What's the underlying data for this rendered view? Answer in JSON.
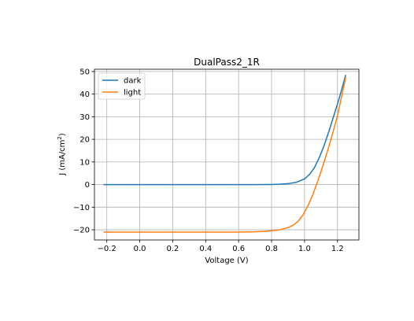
{
  "chart_data": {
    "type": "line",
    "title": "DualPass2_1R",
    "xlabel": "Voltage (V)",
    "ylabel_main": "J (mA/cm",
    "ylabel_sup": "2",
    "ylabel_close": ")",
    "xlim": [
      -0.275,
      1.33
    ],
    "ylim": [
      -24.5,
      51
    ],
    "xticks": [
      -0.2,
      0.0,
      0.2,
      0.4,
      0.6,
      0.8,
      1.0,
      1.2
    ],
    "xtick_labels": [
      "−0.2",
      "0.0",
      "0.2",
      "0.4",
      "0.6",
      "0.8",
      "1.0",
      "1.2"
    ],
    "yticks": [
      -20,
      -10,
      0,
      10,
      20,
      30,
      40,
      50
    ],
    "ytick_labels": [
      "−20",
      "−10",
      "0",
      "10",
      "20",
      "30",
      "40",
      "50"
    ],
    "grid": true,
    "legend_position": "top-left",
    "series": [
      {
        "name": "dark",
        "color": "#1f77b4",
        "x": [
          -0.22,
          0.0,
          0.2,
          0.4,
          0.6,
          0.7,
          0.8,
          0.85,
          0.9,
          0.95,
          1.0,
          1.03,
          1.06,
          1.09,
          1.12,
          1.15,
          1.18,
          1.21,
          1.25
        ],
        "y": [
          0,
          0,
          0,
          0,
          0,
          0,
          0.05,
          0.15,
          0.4,
          1.0,
          2.5,
          4.5,
          7.5,
          12,
          17.5,
          24,
          31,
          38,
          48.5
        ]
      },
      {
        "name": "light",
        "color": "#ff7f0e",
        "x": [
          -0.22,
          0.0,
          0.2,
          0.4,
          0.6,
          0.7,
          0.75,
          0.8,
          0.85,
          0.9,
          0.93,
          0.96,
          0.99,
          1.02,
          1.05,
          1.08,
          1.11,
          1.14,
          1.17,
          1.2,
          1.25
        ],
        "y": [
          -21,
          -21,
          -21,
          -21,
          -21,
          -20.9,
          -20.7,
          -20.4,
          -20,
          -19,
          -18,
          -16.3,
          -13.5,
          -9.5,
          -4.5,
          1.5,
          8,
          15,
          22.5,
          30.5,
          47.5
        ]
      }
    ]
  }
}
